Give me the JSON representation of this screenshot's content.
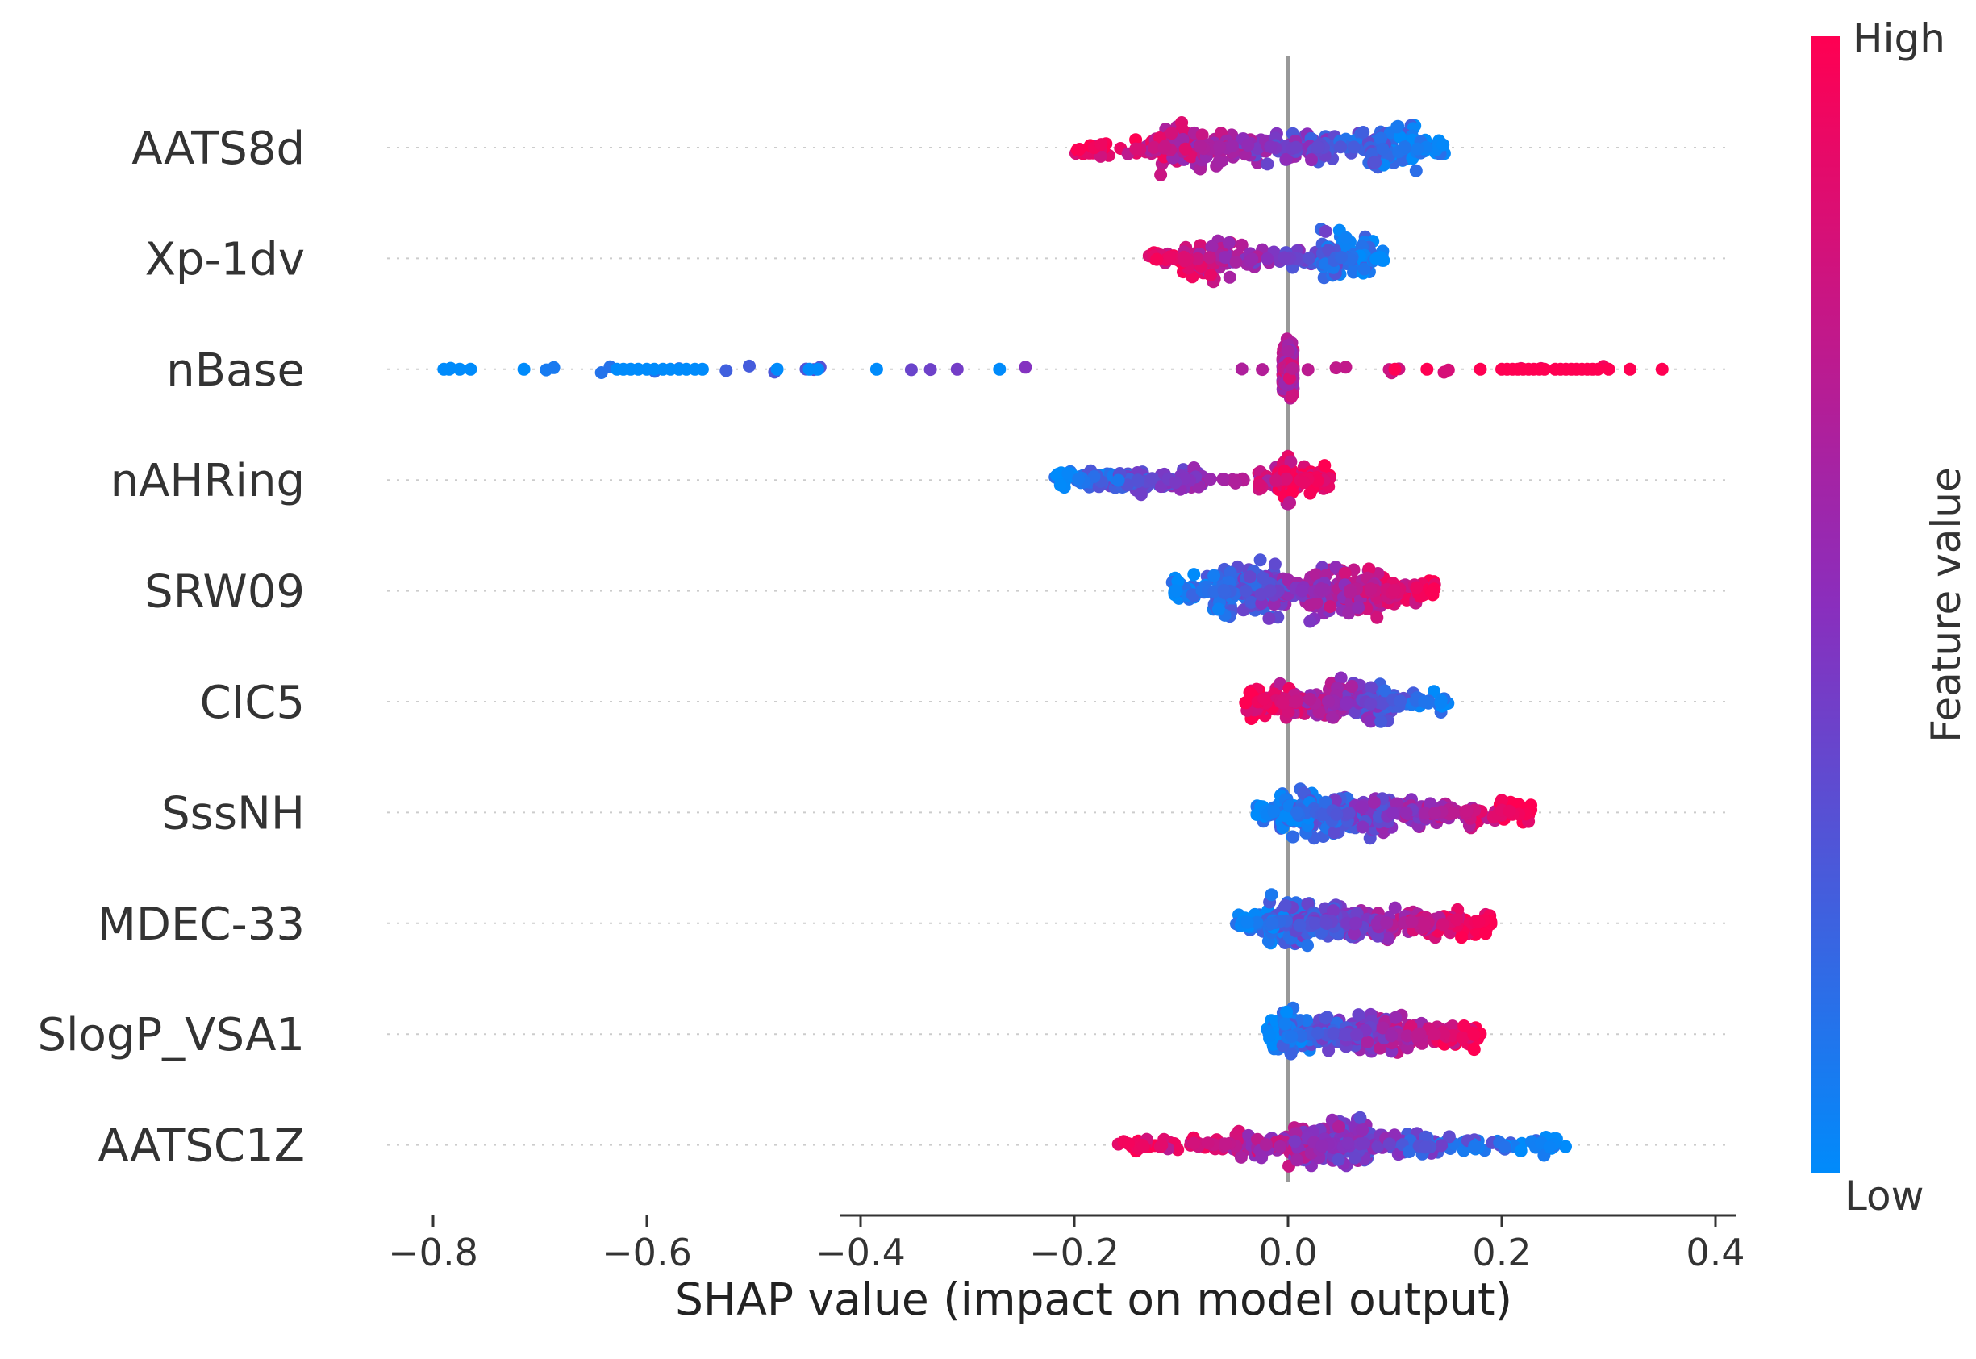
{
  "chart_data": {
    "type": "scatter",
    "subtype": "shap-beeswarm",
    "title": "",
    "xlabel": "SHAP value (impact on model output)",
    "xlim": [
      -0.81,
      0.415
    ],
    "xticks": [
      -0.8,
      -0.6,
      -0.4,
      -0.2,
      0.0,
      0.2,
      0.4
    ],
    "xtick_labels": [
      "−0.8",
      "−0.6",
      "−0.4",
      "−0.2",
      "0.0",
      "0.2",
      "0.4"
    ],
    "features": [
      {
        "name": "AATS8d",
        "min": -0.2,
        "max": 0.15,
        "count": 320,
        "low_side": "right",
        "segments": [
          [
            -0.2,
            -0.13,
            0.25
          ],
          [
            -0.13,
            -0.08,
            1.0
          ],
          [
            -0.08,
            -0.02,
            0.55
          ],
          [
            -0.02,
            0.02,
            0.6
          ],
          [
            0.02,
            0.07,
            0.55
          ],
          [
            0.07,
            0.12,
            1.0
          ],
          [
            0.12,
            0.15,
            0.3
          ]
        ]
      },
      {
        "name": "Xp-1dv",
        "min": -0.13,
        "max": 0.09,
        "count": 220,
        "low_side": "right",
        "segments": [
          [
            -0.13,
            -0.1,
            0.25
          ],
          [
            -0.1,
            -0.05,
            0.8
          ],
          [
            -0.05,
            -0.03,
            0.3
          ],
          [
            -0.03,
            0.03,
            0.25
          ],
          [
            0.03,
            0.08,
            1.0
          ],
          [
            0.08,
            0.09,
            0.3
          ]
        ]
      },
      {
        "name": "nBase",
        "min": -0.79,
        "max": 0.35,
        "count": 260,
        "low_side": "left",
        "segments": [
          [
            -0.005,
            0.005,
            1.0
          ]
        ]
      },
      {
        "name": "nAHRing",
        "min": -0.22,
        "max": 0.04,
        "count": 260,
        "low_side": "left",
        "segments": [
          [
            -0.22,
            -0.08,
            0.3
          ],
          [
            -0.03,
            0.04,
            0.35
          ],
          [
            -0.005,
            0.005,
            0.9
          ]
        ]
      },
      {
        "name": "SRW09",
        "min": -0.11,
        "max": 0.14,
        "count": 360,
        "low_side": "left",
        "segments": [
          [
            -0.11,
            -0.07,
            0.4
          ],
          [
            -0.07,
            0.0,
            1.0
          ],
          [
            0.0,
            0.02,
            0.3
          ],
          [
            0.02,
            0.09,
            1.0
          ],
          [
            0.09,
            0.14,
            0.4
          ]
        ]
      },
      {
        "name": "CIC5",
        "min": -0.04,
        "max": 0.15,
        "count": 240,
        "low_side": "right",
        "segments": [
          [
            -0.04,
            0.0,
            0.6
          ],
          [
            0.0,
            0.04,
            0.45
          ],
          [
            0.04,
            0.1,
            0.8
          ],
          [
            0.1,
            0.15,
            0.2
          ]
        ]
      },
      {
        "name": "SssNH",
        "min": -0.03,
        "max": 0.23,
        "count": 300,
        "low_side": "left",
        "segments": [
          [
            -0.03,
            0.0,
            0.35
          ],
          [
            -0.008,
            0.008,
            1.0
          ],
          [
            0.01,
            0.1,
            0.9
          ],
          [
            0.1,
            0.18,
            0.5
          ],
          [
            0.18,
            0.23,
            0.3
          ]
        ]
      },
      {
        "name": "MDEC-33",
        "min": -0.05,
        "max": 0.19,
        "count": 300,
        "low_side": "left",
        "segments": [
          [
            -0.05,
            -0.02,
            0.3
          ],
          [
            -0.02,
            0.02,
            1.0
          ],
          [
            0.02,
            0.12,
            0.55
          ],
          [
            0.12,
            0.19,
            0.35
          ]
        ]
      },
      {
        "name": "SlogP_VSA1",
        "min": -0.02,
        "max": 0.18,
        "count": 280,
        "low_side": "left",
        "segments": [
          [
            -0.02,
            0.03,
            0.55
          ],
          [
            -0.005,
            0.005,
            1.0
          ],
          [
            0.03,
            0.11,
            0.7
          ],
          [
            0.11,
            0.18,
            0.45
          ]
        ]
      },
      {
        "name": "AATSC1Z",
        "min": -0.17,
        "max": 0.26,
        "count": 320,
        "low_side": "right",
        "segments": [
          [
            -0.17,
            -0.05,
            0.15
          ],
          [
            -0.05,
            0.0,
            0.45
          ],
          [
            0.0,
            0.08,
            1.0
          ],
          [
            0.08,
            0.14,
            0.35
          ],
          [
            0.14,
            0.26,
            0.2
          ]
        ]
      }
    ],
    "colorbar": {
      "label": "Feature value",
      "high_label": "High",
      "low_label": "Low",
      "low_color": "#008bfb",
      "mid_color": "#8a2ebd",
      "high_color": "#ff0052"
    }
  }
}
